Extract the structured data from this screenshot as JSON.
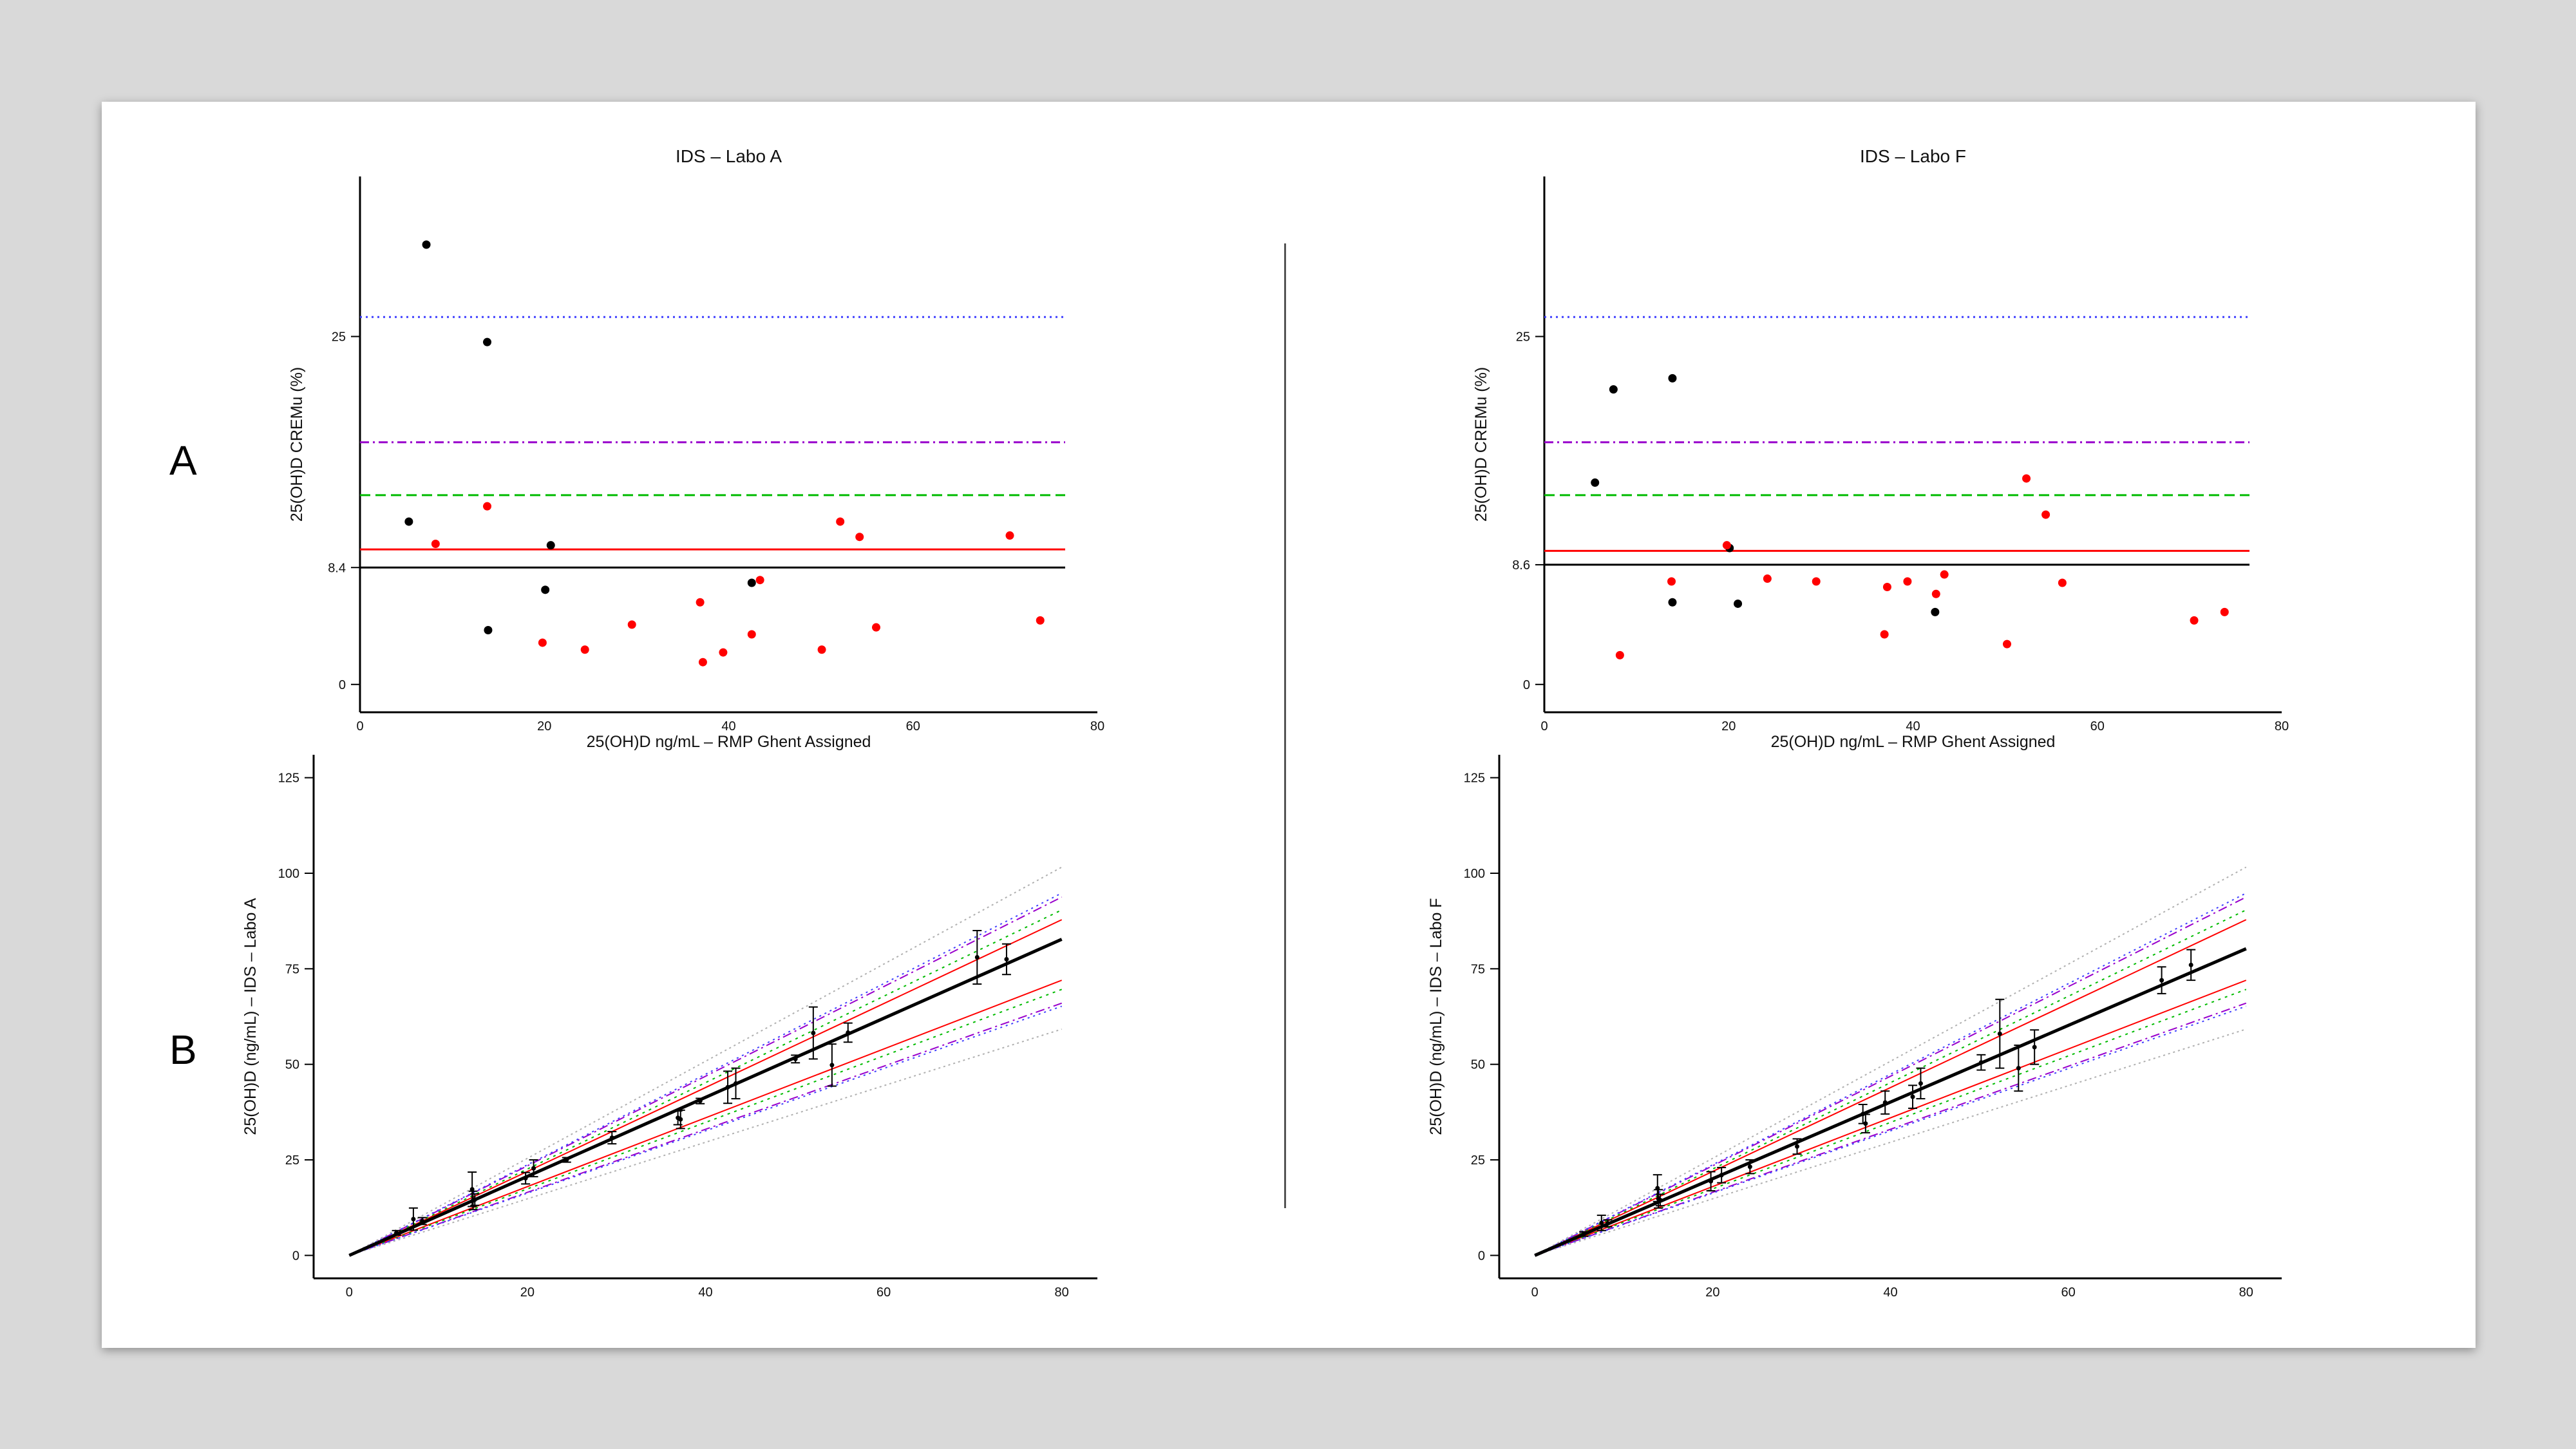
{
  "row_labels": [
    "A",
    "B"
  ],
  "colors": {
    "black_point": "#000000",
    "red_point": "#ff0000",
    "mean_line": "#000000",
    "red_limit": "#ff0000",
    "green_limit": "#00bb00",
    "purple_limit": "#9900cc",
    "blue_limit": "#4040ff"
  },
  "chart_data": [
    {
      "id": "A-left",
      "type": "scatter",
      "title": "IDS – Labo A",
      "xlabel": "25(OH)D  ng/mL – RMP Ghent Assigned",
      "ylabel": "25(OH)D  CREMu (%)",
      "xlim": [
        0,
        80
      ],
      "ylim": [
        -2,
        36.5
      ],
      "xticks": [
        "0",
        "20",
        "40",
        "60",
        "80"
      ],
      "yticks": [
        {
          "v": 0,
          "label": "0"
        },
        {
          "v": 8.4,
          "label": "8.4"
        },
        {
          "v": 25,
          "label": "25"
        }
      ],
      "hlines": [
        {
          "y": 8.4,
          "style": "solid",
          "color": "black"
        },
        {
          "y": 9.7,
          "style": "solid",
          "color": "red"
        },
        {
          "y": 13.6,
          "style": "dashed",
          "color": "green"
        },
        {
          "y": 17.4,
          "style": "dashdot",
          "color": "purple"
        },
        {
          "y": 26.4,
          "style": "dotted",
          "color": "blue"
        }
      ],
      "series": [
        {
          "color": "black",
          "points": [
            [
              7.2,
              31.6
            ],
            [
              13.8,
              24.6
            ],
            [
              5.3,
              11.7
            ],
            [
              20.7,
              10.0
            ],
            [
              20.1,
              6.8
            ],
            [
              13.9,
              3.9
            ],
            [
              42.5,
              7.3
            ]
          ]
        },
        {
          "color": "red",
          "points": [
            [
              8.2,
              10.1
            ],
            [
              13.8,
              12.8
            ],
            [
              19.8,
              3.0
            ],
            [
              24.4,
              2.5
            ],
            [
              29.5,
              4.3
            ],
            [
              36.9,
              5.9
            ],
            [
              37.2,
              1.6
            ],
            [
              39.4,
              2.3
            ],
            [
              42.5,
              3.6
            ],
            [
              43.4,
              7.5
            ],
            [
              50.1,
              2.5
            ],
            [
              52.1,
              11.7
            ],
            [
              54.2,
              10.6
            ],
            [
              56.0,
              4.1
            ],
            [
              70.5,
              10.7
            ],
            [
              73.8,
              4.6
            ]
          ]
        }
      ]
    },
    {
      "id": "A-right",
      "type": "scatter",
      "title": "IDS – Labo F",
      "xlabel": "25(OH)D  ng/mL – RMP Ghent Assigned",
      "ylabel": "25(OH)D  CREMu (%)",
      "xlim": [
        0,
        80
      ],
      "ylim": [
        -2,
        36.5
      ],
      "xticks": [
        "0",
        "20",
        "40",
        "60",
        "80"
      ],
      "yticks": [
        {
          "v": 0,
          "label": "0"
        },
        {
          "v": 8.6,
          "label": "8.6"
        },
        {
          "v": 25,
          "label": "25"
        }
      ],
      "hlines": [
        {
          "y": 8.6,
          "style": "solid",
          "color": "black"
        },
        {
          "y": 9.6,
          "style": "solid",
          "color": "red"
        },
        {
          "y": 13.6,
          "style": "dashed",
          "color": "green"
        },
        {
          "y": 17.4,
          "style": "dashdot",
          "color": "purple"
        },
        {
          "y": 26.4,
          "style": "dotted",
          "color": "blue"
        }
      ],
      "series": [
        {
          "color": "black",
          "points": [
            [
              5.5,
              14.5
            ],
            [
              7.5,
              21.2
            ],
            [
              13.9,
              22.0
            ],
            [
              20.1,
              9.8
            ],
            [
              13.9,
              5.9
            ],
            [
              21.0,
              5.8
            ],
            [
              42.4,
              5.2
            ]
          ]
        },
        {
          "color": "red",
          "points": [
            [
              8.2,
              2.1
            ],
            [
              13.8,
              7.4
            ],
            [
              19.8,
              10.0
            ],
            [
              24.2,
              7.6
            ],
            [
              29.5,
              7.4
            ],
            [
              36.9,
              3.6
            ],
            [
              37.2,
              7.0
            ],
            [
              39.4,
              7.4
            ],
            [
              42.5,
              6.5
            ],
            [
              43.4,
              7.9
            ],
            [
              50.2,
              2.9
            ],
            [
              52.3,
              14.8
            ],
            [
              54.4,
              12.2
            ],
            [
              56.2,
              7.3
            ],
            [
              70.5,
              4.6
            ],
            [
              73.8,
              5.2
            ]
          ]
        }
      ]
    },
    {
      "id": "B-left",
      "type": "scatter",
      "title": "",
      "xlabel": "",
      "ylabel": "25(OH)D (ng/mL) – IDS – Labo A",
      "xlim": [
        -4,
        84
      ],
      "ylim": [
        -6,
        131
      ],
      "xticks": [
        "0",
        "20",
        "40",
        "60",
        "80"
      ],
      "yticks": [
        {
          "v": 0,
          "label": "0"
        },
        {
          "v": 25,
          "label": "25"
        },
        {
          "v": 50,
          "label": "50"
        },
        {
          "v": 75,
          "label": "75"
        },
        {
          "v": 100,
          "label": "100"
        },
        {
          "v": 125,
          "label": "125"
        }
      ],
      "regression_slope": 1.034,
      "limit_slopes": {
        "red": [
          0.9,
          1.098
        ],
        "green": [
          0.87,
          1.13
        ],
        "purple": [
          0.825,
          1.172
        ],
        "blue": [
          0.815,
          1.185
        ],
        "gray": [
          0.74,
          1.27
        ]
      },
      "points": [
        [
          5.3,
          5.9
        ],
        [
          7.2,
          9.5
        ],
        [
          8.2,
          9.0
        ],
        [
          13.8,
          17.3
        ],
        [
          13.9,
          14.4
        ],
        [
          14.1,
          14.6
        ],
        [
          19.8,
          20.2
        ],
        [
          20.7,
          22.8
        ],
        [
          24.4,
          25.0
        ],
        [
          29.5,
          30.8
        ],
        [
          36.9,
          36.0
        ],
        [
          37.2,
          35.6
        ],
        [
          39.4,
          40.4
        ],
        [
          42.5,
          44.0
        ],
        [
          43.4,
          45.0
        ],
        [
          50.1,
          51.4
        ],
        [
          52.1,
          58.2
        ],
        [
          54.2,
          49.8
        ],
        [
          56.0,
          58.3
        ],
        [
          70.5,
          78.0
        ],
        [
          73.8,
          77.5
        ]
      ],
      "errors": [
        0.6,
        2.9,
        0.9,
        4.5,
        2.4,
        1.5,
        1.5,
        2.2,
        0.6,
        1.6,
        1.8,
        2.4,
        0.7,
        4.2,
        4.0,
        1.0,
        6.8,
        5.5,
        2.5,
        7.0,
        4.0
      ]
    },
    {
      "id": "B-right",
      "type": "scatter",
      "title": "",
      "xlabel": "",
      "ylabel": "25(OH)D (ng/mL) – IDS – Labo F",
      "xlim": [
        -4,
        84
      ],
      "ylim": [
        -6,
        131
      ],
      "xticks": [
        "0",
        "20",
        "40",
        "60",
        "80"
      ],
      "yticks": [
        {
          "v": 0,
          "label": "0"
        },
        {
          "v": 25,
          "label": "25"
        },
        {
          "v": 50,
          "label": "50"
        },
        {
          "v": 75,
          "label": "75"
        },
        {
          "v": 100,
          "label": "100"
        },
        {
          "v": 125,
          "label": "125"
        }
      ],
      "regression_slope": 1.003,
      "limit_slopes": {
        "red": [
          0.9,
          1.098
        ],
        "green": [
          0.87,
          1.13
        ],
        "purple": [
          0.825,
          1.172
        ],
        "blue": [
          0.815,
          1.185
        ],
        "gray": [
          0.74,
          1.27
        ]
      },
      "points": [
        [
          5.5,
          5.6
        ],
        [
          7.5,
          8.5
        ],
        [
          8.2,
          8.4
        ],
        [
          13.8,
          17.6
        ],
        [
          13.9,
          14.8
        ],
        [
          14.1,
          14.5
        ],
        [
          19.8,
          19.4
        ],
        [
          21.0,
          21.0
        ],
        [
          24.2,
          23.2
        ],
        [
          29.5,
          28.5
        ],
        [
          36.9,
          37.0
        ],
        [
          37.2,
          34.5
        ],
        [
          39.4,
          40.0
        ],
        [
          42.5,
          41.5
        ],
        [
          43.4,
          45.0
        ],
        [
          50.2,
          50.5
        ],
        [
          52.3,
          58.0
        ],
        [
          54.4,
          49.0
        ],
        [
          56.2,
          54.5
        ],
        [
          70.5,
          72.0
        ],
        [
          73.8,
          76.0
        ]
      ],
      "errors": [
        0.6,
        2.0,
        0.9,
        3.5,
        2.4,
        1.5,
        2.5,
        2.0,
        1.8,
        2.0,
        2.5,
        2.4,
        3.0,
        3.0,
        4.0,
        2.0,
        9.0,
        6.0,
        4.5,
        3.5,
        4.0
      ]
    }
  ]
}
